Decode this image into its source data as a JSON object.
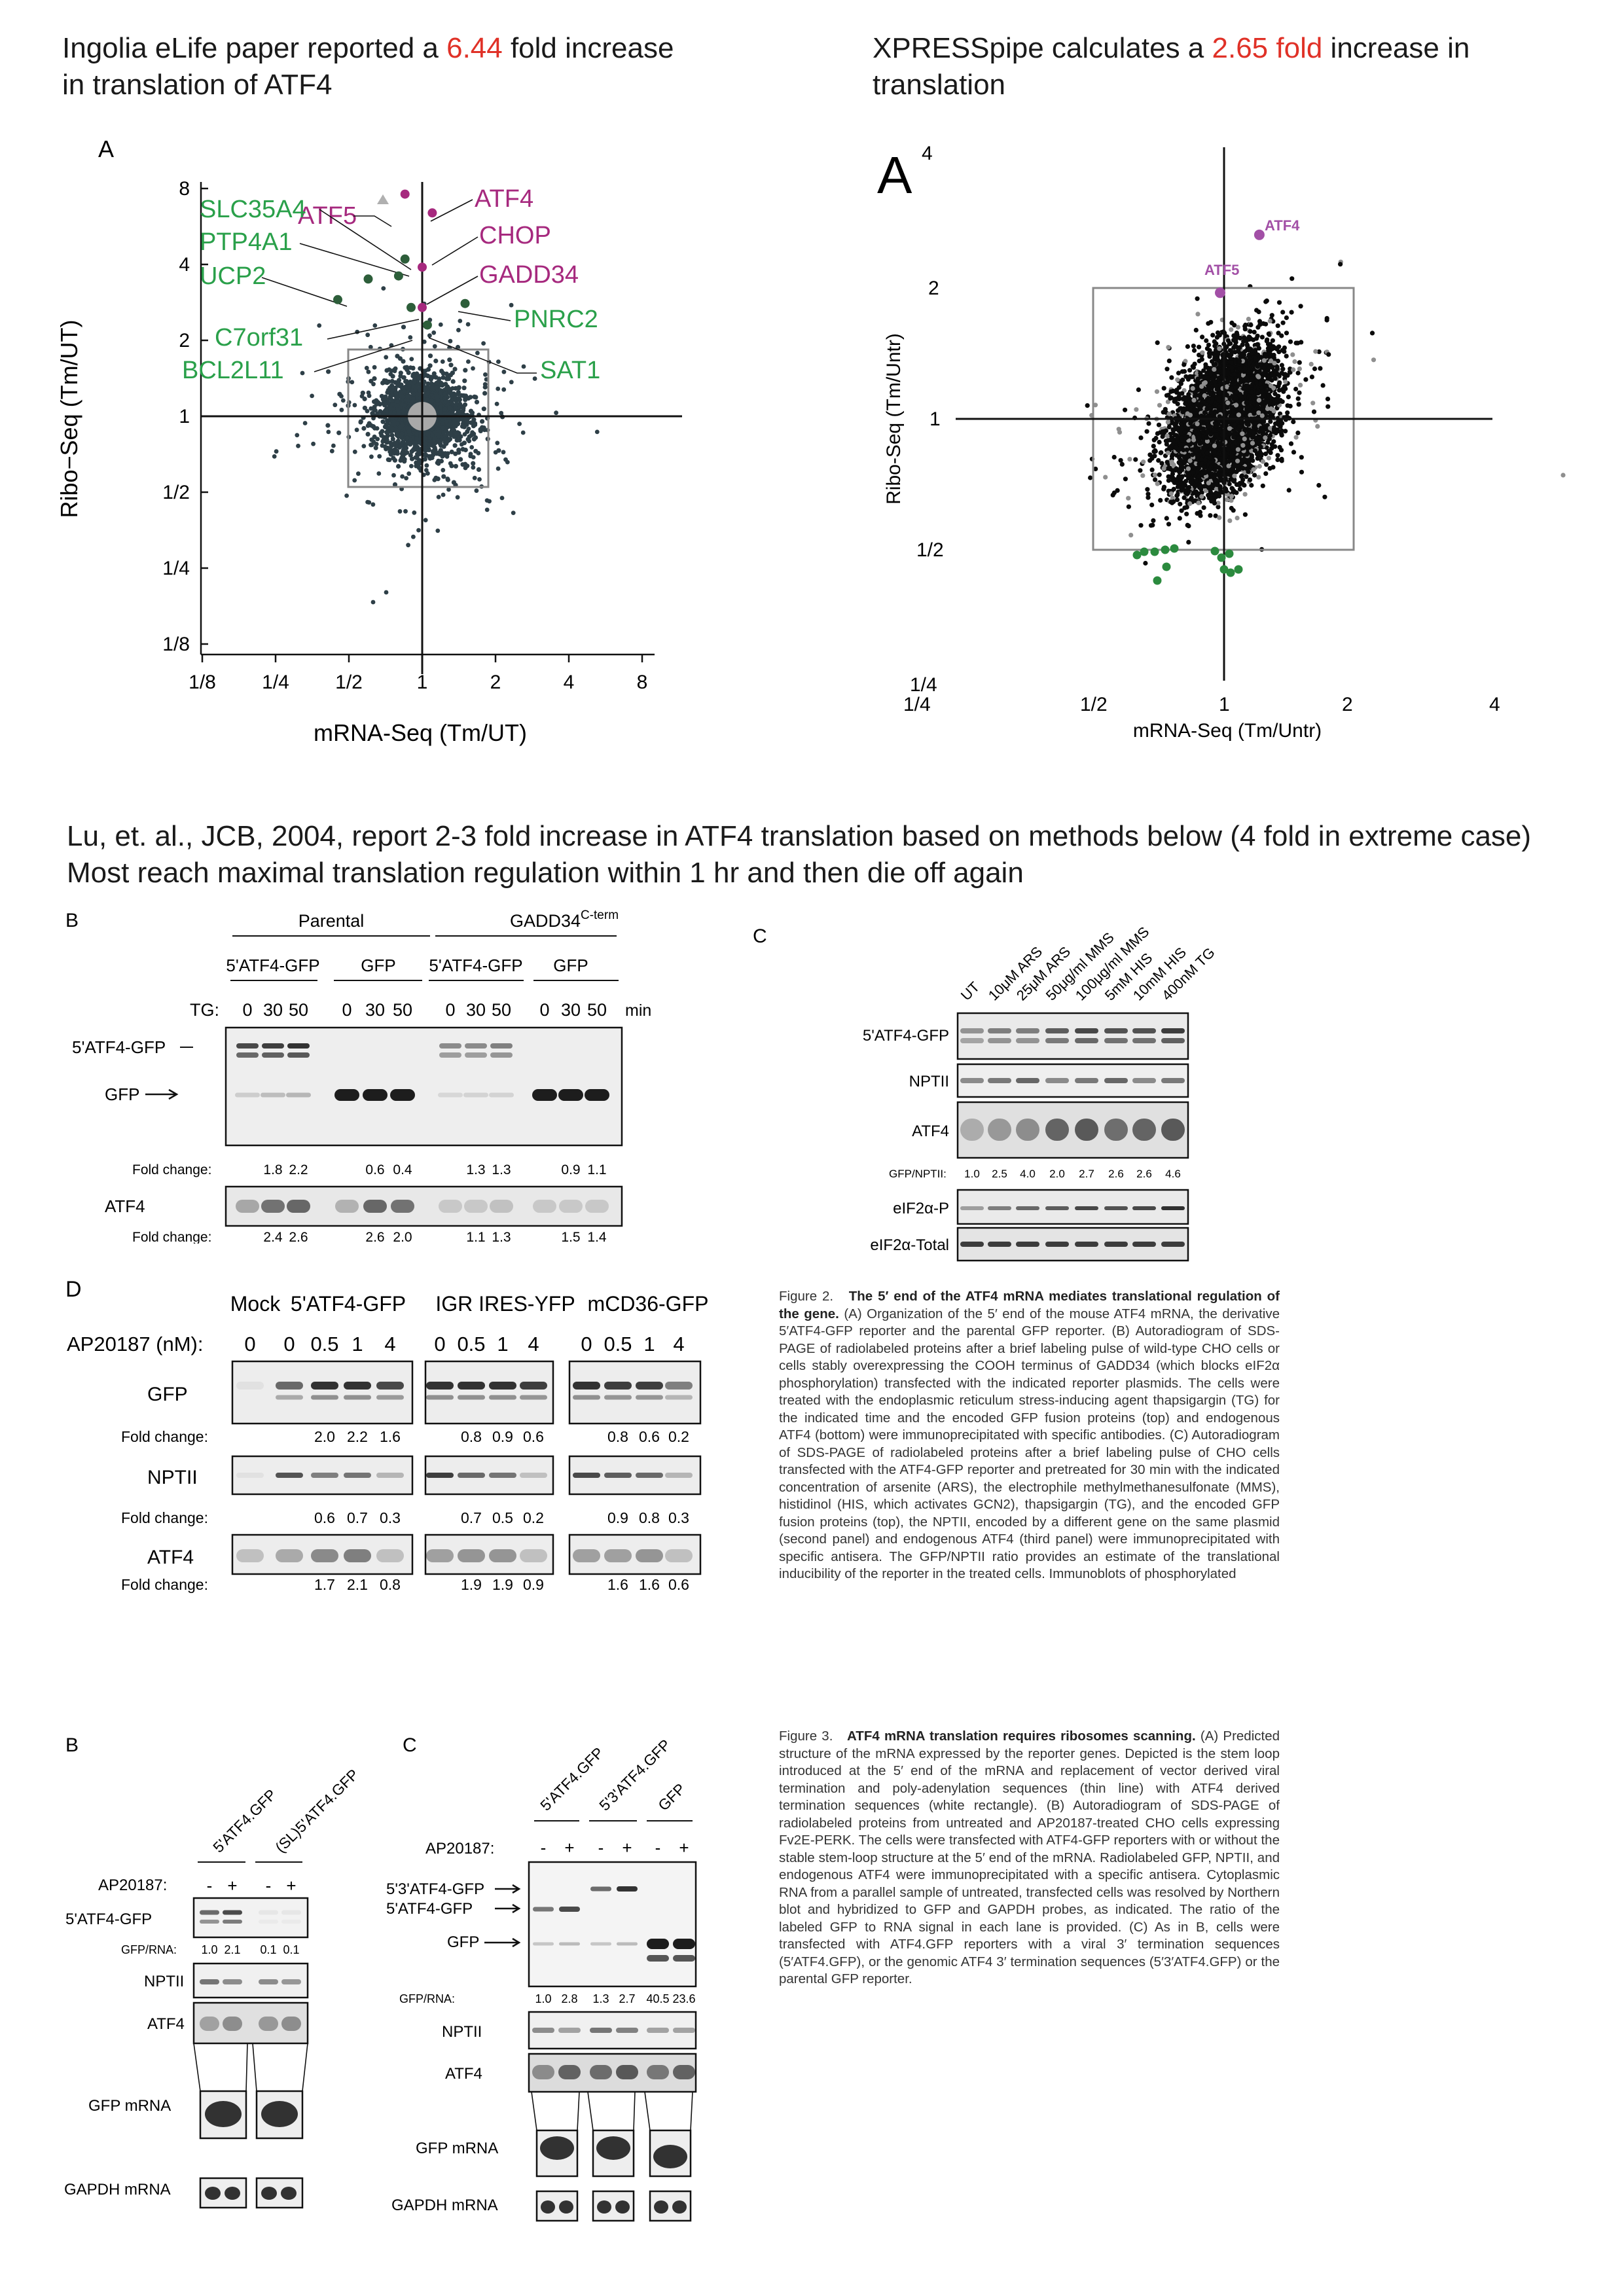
{
  "headers": {
    "left_pre": "Ingolia eLife paper reported a ",
    "left_fold": "6.44",
    "left_post": " fold increase",
    "left_line2": "in translation of ATF4",
    "right_pre": "XPRESSpipe calculates a ",
    "right_fold": "2.65 fold",
    "right_post": " increase in",
    "right_line2": "translation",
    "lu_line1": "Lu, et. al., JCB, 2004, report 2-3 fold increase in ATF4 translation based on methods below (4 fold in extreme case)",
    "lu_line2": "Most reach maximal translation regulation within 1 hr and then die off again"
  },
  "plot_left": {
    "panel": "A",
    "ylabel": "Ribo−Seq (Tm/UT)",
    "xlabel": "mRNA-Seq (Tm/UT)",
    "y_ticks": [
      "8",
      "4",
      "2",
      "1",
      "1/2",
      "1/4",
      "1/8"
    ],
    "x_ticks": [
      "1/8",
      "1/4",
      "1/2",
      "1",
      "2",
      "4",
      "8"
    ],
    "labels_magenta": [
      "ATF5",
      "ATF4",
      "CHOP",
      "GADD34"
    ],
    "labels_green": [
      "SLC35A4",
      "PTP4A1",
      "UCP2",
      "C7orf31",
      "BCL2L11",
      "PNRC2",
      "SAT1"
    ]
  },
  "plot_right": {
    "panel": "A",
    "ylabel": "Ribo-Seq (Tm/Untr)",
    "xlabel": "mRNA-Seq (Tm/Untr)",
    "y_ticks": [
      "4",
      "2",
      "1",
      "1/2",
      "1/4"
    ],
    "x_ticks": [
      "1/4",
      "1/2",
      "1",
      "2",
      "4"
    ],
    "labels": [
      "ATF4",
      "ATF5"
    ]
  },
  "chart_data": [
    {
      "type": "scatter",
      "xlabel": "mRNA-Seq (Tm/UT)",
      "ylabel": "Ribo−Seq (Tm/UT)",
      "xscale": "log2",
      "yscale": "log2",
      "xlim": [
        0.125,
        8
      ],
      "ylim": [
        0.125,
        8
      ],
      "points": [
        {
          "name": "ATF5",
          "x": 0.85,
          "y": 7.6
        },
        {
          "name": "ATF4",
          "x": 1.1,
          "y": 6.4
        },
        {
          "name": "CHOP",
          "x": 1.0,
          "y": 3.9
        },
        {
          "name": "GADD34",
          "x": 1.0,
          "y": 2.7
        },
        {
          "name": "SLC35A4",
          "x": 0.85,
          "y": 4.2
        },
        {
          "name": "PTP4A1",
          "x": 0.8,
          "y": 3.6
        },
        {
          "name": "UCP2",
          "x": 0.6,
          "y": 3.5
        },
        {
          "name": "C7orf31",
          "x": 0.9,
          "y": 2.7
        },
        {
          "name": "BCL2L11",
          "x": 0.45,
          "y": 2.9
        },
        {
          "name": "PNRC2",
          "x": 1.5,
          "y": 2.8
        },
        {
          "name": "SAT1",
          "x": 1.05,
          "y": 2.3
        }
      ]
    },
    {
      "type": "scatter",
      "xlabel": "mRNA-Seq (Tm/Untr)",
      "ylabel": "Ribo-Seq (Tm/Untr)",
      "xscale": "log2",
      "yscale": "log2",
      "xlim": [
        0.25,
        4
      ],
      "ylim": [
        0.25,
        4
      ],
      "points": [
        {
          "name": "ATF4",
          "x": 1.2,
          "y": 2.65
        },
        {
          "name": "ATF5",
          "x": 0.98,
          "y": 1.95
        }
      ]
    }
  ],
  "blot_B": {
    "letter": "B",
    "group_parental": "Parental",
    "group_gadd": "GADD34",
    "group_gadd_sup": "C-term",
    "sub1": "5'ATF4-GFP",
    "sub2": "GFP",
    "sub3": "5'ATF4-GFP",
    "sub4": "GFP",
    "tg": "TG:",
    "times": [
      "0",
      "30",
      "50",
      "0",
      "30",
      "50",
      "0",
      "30",
      "50",
      "0",
      "30",
      "50"
    ],
    "min": "min",
    "row1": "5'ATF4-GFP",
    "row2": "GFP",
    "row3": "ATF4",
    "fold": "Fold change:",
    "fold1": [
      "1.8",
      "2.2",
      "0.6",
      "0.4",
      "1.3",
      "1.3",
      "0.9",
      "1.1"
    ],
    "fold2": [
      "2.4",
      "2.6",
      "2.6",
      "2.0",
      "1.1",
      "1.3",
      "1.5",
      "1.4"
    ]
  },
  "blot_C": {
    "letter": "C",
    "cols": [
      "UT",
      "10μM ARS",
      "25μM ARS",
      "50μg/ml MMS",
      "100μg/ml MMS",
      "5mM HIS",
      "10mM HIS",
      "400nM TG"
    ],
    "rows": [
      "5'ATF4-GFP",
      "NPTII",
      "ATF4"
    ],
    "ratio_label": "GFP/NPTII:",
    "ratios": [
      "1.0",
      "2.5",
      "4.0",
      "2.0",
      "2.7",
      "2.6",
      "2.6",
      "4.6"
    ],
    "rows2": [
      "eIF2α-P",
      "eIF2α-Total"
    ]
  },
  "blot_D": {
    "letter": "D",
    "groups": [
      "Mock",
      "5'ATF4-GFP",
      "IGR IRES-YFP",
      "mCD36-GFP"
    ],
    "ap": "AP20187 (nM):",
    "doses": [
      "0",
      "0",
      "0.5",
      "1",
      "4",
      "0",
      "0.5",
      "1",
      "4",
      "0",
      "0.5",
      "1",
      "4"
    ],
    "rows": [
      "GFP",
      "NPTII",
      "ATF4"
    ],
    "fold": "Fold change:",
    "fold_gfp": [
      "2.0",
      "2.2",
      "1.6",
      "0.8",
      "0.9",
      "0.6",
      "0.8",
      "0.6",
      "0.2"
    ],
    "fold_npt": [
      "0.6",
      "0.7",
      "0.3",
      "0.7",
      "0.5",
      "0.2",
      "0.9",
      "0.8",
      "0.3"
    ],
    "fold_atf": [
      "1.7",
      "2.1",
      "0.8",
      "1.9",
      "1.9",
      "0.9",
      "1.6",
      "1.6",
      "0.6"
    ]
  },
  "caption2": {
    "lead": "Figure 2.",
    "title": "The 5′ end of the ATF4 mRNA mediates translational regulation of the gene.",
    "body": " (A) Organization of the 5′ end of the mouse ATF4 mRNA, the derivative 5′ATF4-GFP reporter and the parental GFP reporter. (B) Autoradiogram of SDS-PAGE of radiolabeled proteins after a brief labeling pulse of wild-type CHO cells or cells stably overexpressing the COOH terminus of GADD34 (which blocks eIF2α phosphorylation) transfected with the indicated reporter plasmids. The cells were treated with the endoplasmic reticulum stress-inducing agent thapsigargin (TG) for the indicated time and the encoded GFP fusion proteins (top) and endogenous ATF4 (bottom) were immunoprecipitated with specific antibodies. (C) Autoradiogram of SDS-PAGE of radiolabeled proteins after a brief labeling pulse of CHO cells transfected with the ATF4-GFP reporter and pretreated for 30 min with the indicated concentration of arsenite (ARS), the electrophile methylmethanesulfonate (MMS), histidinol (HIS, which activates GCN2), thapsigargin (TG), and the encoded GFP fusion proteins (top), the NPTII, encoded by a different gene on the same plasmid (second panel) and endogenous ATF4 (third panel) were immunoprecipitated with specific antisera. The GFP/NPTII ratio provides an estimate of the translational inducibility of the reporter in the treated cells. Immunoblots of phosphorylated"
  },
  "blot_3B": {
    "letter": "B",
    "cols": [
      "5'ATF4.GFP",
      "(SL)5'ATF4.GFP"
    ],
    "ap": "AP20187:",
    "signs": [
      "-",
      "+",
      "-",
      "+"
    ],
    "row1": "5'ATF4-GFP",
    "ratio_label": "GFP/RNA:",
    "ratios": [
      "1.0",
      "2.1",
      "0.1",
      "0.1"
    ],
    "rows": [
      "NPTII",
      "ATF4",
      "GFP mRNA",
      "GAPDH mRNA"
    ]
  },
  "blot_3C": {
    "letter": "C",
    "cols": [
      "5'ATF4.GFP",
      "5'3'ATF4.GFP",
      "GFP"
    ],
    "ap": "AP20187:",
    "signs": [
      "-",
      "+",
      "-",
      "+",
      "-",
      "+"
    ],
    "bands": [
      "5'3'ATF4-GFP",
      "5'ATF4-GFP",
      "GFP"
    ],
    "ratio_label": "GFP/RNA:",
    "ratios": [
      "1.0",
      "2.8",
      "1.3",
      "2.7",
      "40.5",
      "23.6"
    ],
    "rows": [
      "NPTII",
      "ATF4",
      "GFP mRNA",
      "GAPDH mRNA"
    ]
  },
  "caption3": {
    "lead": "Figure 3.",
    "title": "ATF4 mRNA translation requires ribosomes scanning.",
    "body": " (A) Predicted structure of the mRNA expressed by the reporter genes. Depicted is the stem loop introduced at the 5′ end of the mRNA and replacement of vector derived viral termination and poly-adenylation sequences (thin line) with ATF4 derived termination sequences (white rectangle). (B) Autoradiogram of SDS-PAGE of radiolabeled proteins from untreated and AP20187-treated CHO cells expressing Fv2E-PERK. The cells were transfected with ATF4-GFP reporters with or without the stable stem-loop structure at the 5′ end of the mRNA. Radiolabeled GFP, NPTII, and endogenous ATF4 were immunoprecipitated with a specific antisera. Cytoplasmic RNA from a parallel sample of untreated, transfected cells was resolved by Northern blot and hybridized to GFP and GAPDH probes, as indicated. The ratio of the labeled GFP to RNA signal in each lane is provided. (C) As in B, cells were transfected with ATF4.GFP reporters with a viral 3′ termination sequences (5′ATF4.GFP), or the genomic ATF4 3′ termination sequences (5′3′ATF4.GFP) or the parental GFP reporter."
  }
}
